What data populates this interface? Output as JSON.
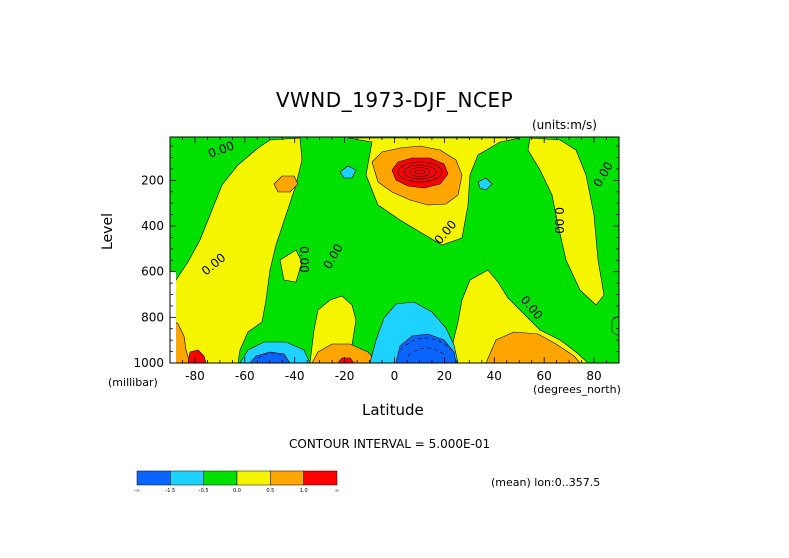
{
  "chart_data": {
    "type": "heatmap",
    "title": "VWND_1973-DJF_NCEP",
    "units": "(units:m/s)",
    "xlabel": "Latitude",
    "xunits": "(degrees_north)",
    "ylabel": "Level",
    "yunits": "(millibar)",
    "xlim": [
      -90,
      90
    ],
    "ylim": [
      1000,
      10
    ],
    "xticks": [
      -80,
      -60,
      -40,
      -20,
      0,
      20,
      40,
      60,
      80
    ],
    "xtick_labels": [
      "-80",
      "-60",
      "-40",
      "-20",
      "0",
      "20",
      "40",
      "60",
      "80"
    ],
    "yticks": [
      200,
      400,
      600,
      800,
      1000
    ],
    "ytick_labels": [
      "200",
      "400",
      "600",
      "800",
      "1000"
    ],
    "contour_labels": [
      "0.00"
    ],
    "contour_interval_text": "CONTOUR INTERVAL = 5.000E-01",
    "footer_text": "(mean) lon:0..357.5",
    "colorbar": {
      "labels": [
        "-∞",
        "-1.5",
        "-0.5",
        "0.0",
        "0.5",
        "1.0",
        "∞"
      ],
      "colors": [
        "#0a64ff",
        "#1ed2ff",
        "#00e100",
        "#f5f500",
        "#ffa500",
        "#ff0000"
      ]
    },
    "features": [
      {
        "kind": "max",
        "lat": 12,
        "level": 130,
        "value": 2.5
      },
      {
        "kind": "max",
        "lat": -87,
        "level": 980,
        "value": 1.5
      },
      {
        "kind": "max",
        "lat": -20,
        "level": 985,
        "value": 1.5
      },
      {
        "kind": "min",
        "lat": 12,
        "level": 950,
        "value": -2.0
      },
      {
        "kind": "min",
        "lat": -55,
        "level": 975,
        "value": -2.0
      },
      {
        "kind": "min",
        "lat": 6,
        "level": 830,
        "value": -0.7
      },
      {
        "kind": "max",
        "lat": 55,
        "level": 960,
        "value": 0.7
      }
    ]
  }
}
